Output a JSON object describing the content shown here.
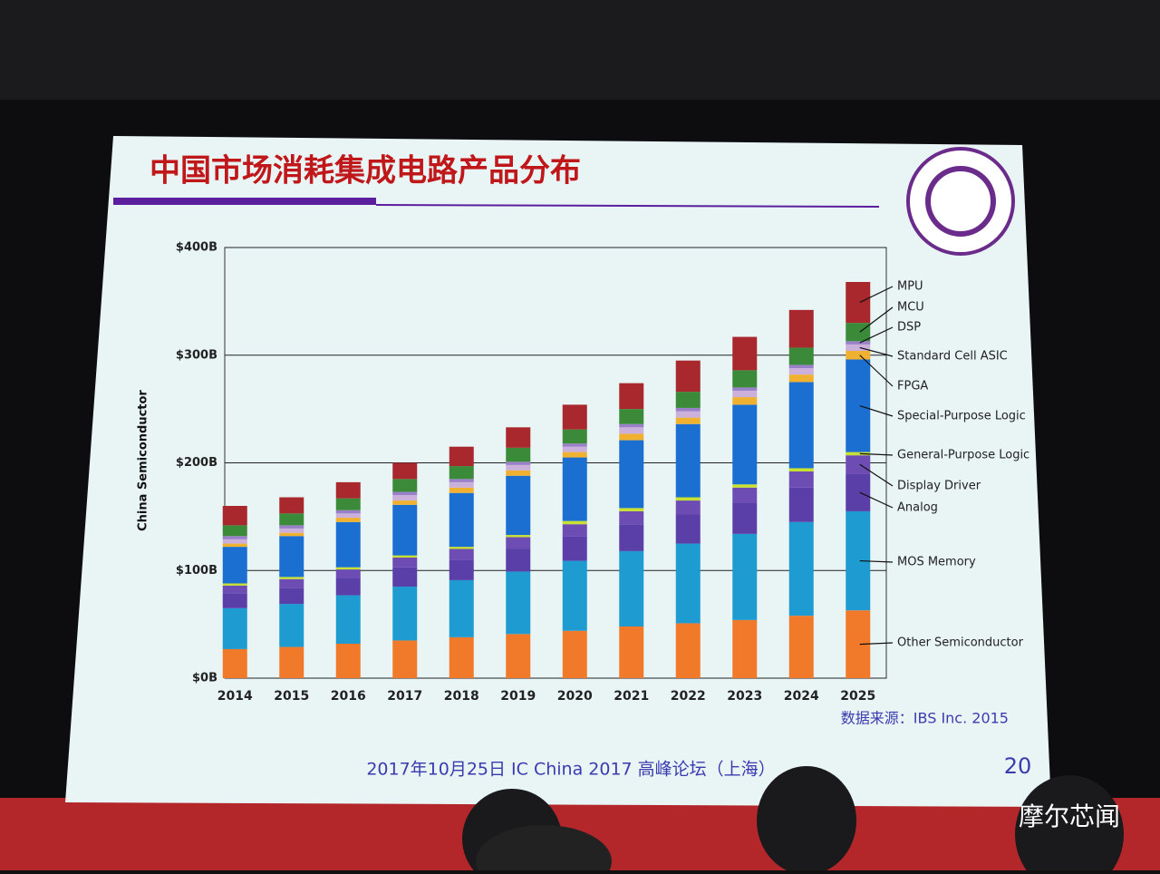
{
  "chart_data": {
    "type": "stacked_bar",
    "title": "中国市场消耗集成电路产品分布",
    "y_label": "China Semiconductor",
    "categories": [
      "2014",
      "2015",
      "2016",
      "2017",
      "2018",
      "2019",
      "2020",
      "2021",
      "2022",
      "2023",
      "2024",
      "2025"
    ],
    "series": [
      {
        "name": "Other Semiconductor",
        "color": "#f07a2a",
        "values": [
          27,
          29,
          32,
          35,
          38,
          41,
          44,
          48,
          51,
          54,
          58,
          63
        ]
      },
      {
        "name": "MOS Memory",
        "color": "#1e9bd0",
        "values": [
          38,
          40,
          45,
          50,
          53,
          58,
          65,
          70,
          74,
          80,
          87,
          92
        ]
      },
      {
        "name": "Analog",
        "color": "#5a3fa8",
        "values": [
          14,
          15,
          16,
          18,
          19,
          21,
          23,
          25,
          27,
          29,
          32,
          35
        ]
      },
      {
        "name": "Display Driver",
        "color": "#6d4cb4",
        "values": [
          7,
          8,
          8,
          9,
          10,
          11,
          11,
          12,
          13,
          14,
          15,
          17
        ]
      },
      {
        "name": "General-Purpose Logic",
        "color": "#c8e030",
        "values": [
          2,
          2,
          2,
          2,
          2,
          2,
          3,
          3,
          3,
          3,
          3,
          3
        ]
      },
      {
        "name": "Special-Purpose Logic",
        "color": "#1a6fd0",
        "values": [
          34,
          38,
          42,
          47,
          50,
          55,
          59,
          63,
          68,
          74,
          80,
          86
        ]
      },
      {
        "name": "FPGA",
        "color": "#f0b030",
        "values": [
          3,
          3,
          4,
          4,
          5,
          5,
          5,
          6,
          6,
          7,
          7,
          8
        ]
      },
      {
        "name": "Standard Cell ASIC",
        "color": "#cbb0dc",
        "values": [
          4,
          4,
          4,
          5,
          5,
          5,
          5,
          6,
          6,
          6,
          6,
          6
        ]
      },
      {
        "name": "DSP",
        "color": "#9a80c8",
        "values": [
          3,
          3,
          3,
          3,
          3,
          3,
          3,
          3,
          3,
          3,
          3,
          3
        ]
      },
      {
        "name": "MCU",
        "color": "#3a8a3a",
        "values": [
          10,
          11,
          11,
          12,
          12,
          13,
          13,
          14,
          15,
          16,
          16,
          17
        ]
      },
      {
        "name": "MPU",
        "color": "#a8282e",
        "values": [
          18,
          15,
          15,
          15,
          18,
          19,
          23,
          24,
          29,
          31,
          35,
          38
        ]
      }
    ],
    "ylim": [
      0,
      400
    ],
    "yticks": [
      {
        "value": 0,
        "label": "$0B"
      },
      {
        "value": 100,
        "label": "$100B"
      },
      {
        "value": 200,
        "label": "$200B"
      },
      {
        "value": 300,
        "label": "$300B"
      },
      {
        "value": 400,
        "label": "$400B"
      }
    ],
    "grid": true,
    "source": "数据来源：IBS Inc. 2015",
    "footer": "2017年10月25日 IC China 2017 高峰论坛（上海）",
    "slide_number": "20",
    "watermark": "摩尔芯闻"
  }
}
